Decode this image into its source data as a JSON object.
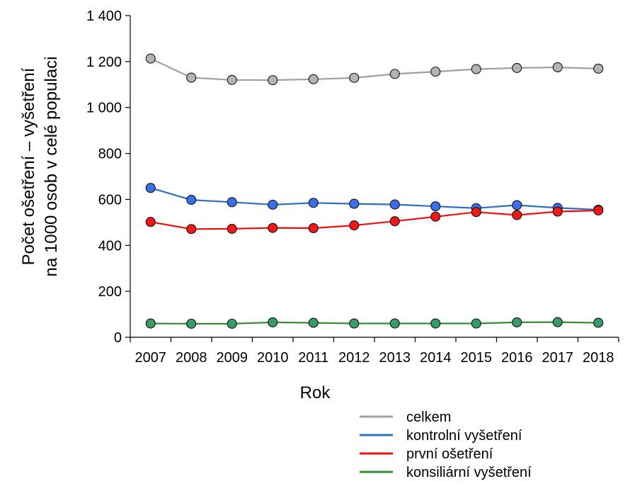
{
  "chart_data": {
    "type": "line",
    "title": "",
    "xlabel": "Rok",
    "ylabel_lines": [
      "Počet ošetření – vyšetření",
      "na 1000 osob v celé populaci"
    ],
    "x": [
      "2007",
      "2008",
      "2009",
      "2010",
      "2011",
      "2012",
      "2013",
      "2014",
      "2015",
      "2016",
      "2017",
      "2018"
    ],
    "ylim": [
      0,
      1400
    ],
    "yticks": [
      0,
      200,
      400,
      600,
      800,
      1000,
      1200,
      1400
    ],
    "ytick_labels": [
      "0",
      "200",
      "400",
      "600",
      "800",
      "1 000",
      "1 200",
      "1 400"
    ],
    "grid": false,
    "legend_position": "bottom-right",
    "series": [
      {
        "name": "celkem",
        "color": "#a0a0a0",
        "marker_color": "#b4b4b4",
        "values": [
          1213,
          1130,
          1120,
          1119,
          1123,
          1129,
          1146,
          1156,
          1167,
          1172,
          1175,
          1169
        ]
      },
      {
        "name": "kontrolní vyšetření",
        "color": "#2f6fc0",
        "marker_color": "#3d6fe8",
        "values": [
          650,
          598,
          588,
          577,
          585,
          581,
          578,
          570,
          562,
          575,
          563,
          555
        ]
      },
      {
        "name": "první ošetření",
        "color": "#ee1010",
        "marker_color": "#ee1a1a",
        "values": [
          502,
          471,
          472,
          476,
          475,
          487,
          505,
          525,
          545,
          532,
          547,
          552
        ]
      },
      {
        "name": "konsiliární vyšetření",
        "color": "#3a8a3a",
        "marker_color": "#3a9a6a",
        "values": [
          60,
          59,
          59,
          65,
          63,
          60,
          60,
          60,
          60,
          65,
          66,
          63
        ]
      }
    ]
  }
}
